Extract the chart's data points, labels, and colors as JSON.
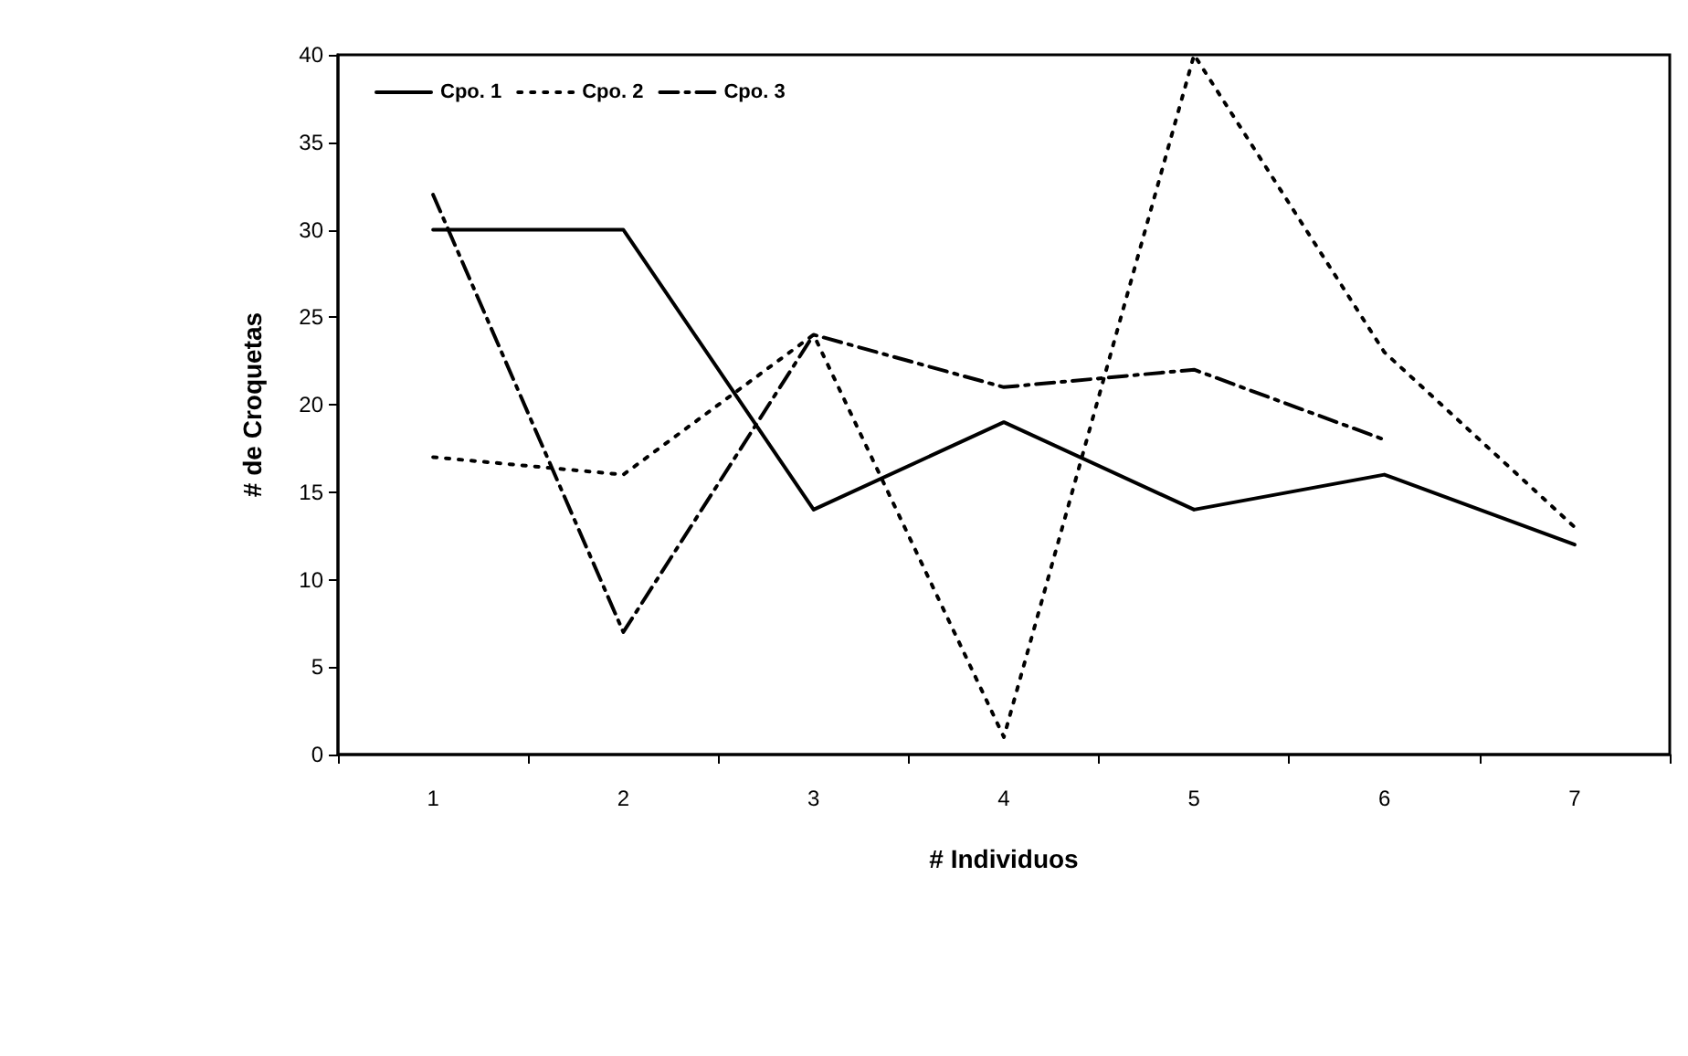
{
  "chart_data": {
    "type": "line",
    "xlabel": "# Individuos",
    "ylabel": "# de Croquetas",
    "categories": [
      "1",
      "2",
      "3",
      "4",
      "5",
      "6",
      "7"
    ],
    "series": [
      {
        "name": "Cpo. 1",
        "color": "#000000",
        "line_style": "solid",
        "values": [
          30,
          30,
          14,
          19,
          14,
          16,
          12
        ]
      },
      {
        "name": "Cpo. 2",
        "color": "#000000",
        "line_style": "dotted",
        "values": [
          17,
          16,
          24,
          1,
          40,
          23,
          13
        ]
      },
      {
        "name": "Cpo. 3",
        "color": "#000000",
        "line_style": "dashed",
        "values": [
          32,
          7,
          24,
          21,
          22,
          18,
          null
        ]
      }
    ],
    "ylim": [
      0,
      40
    ],
    "yticks": [
      0,
      5,
      10,
      15,
      20,
      25,
      30,
      35,
      40
    ],
    "grid": false,
    "legend": "top left",
    "marker": "none"
  }
}
